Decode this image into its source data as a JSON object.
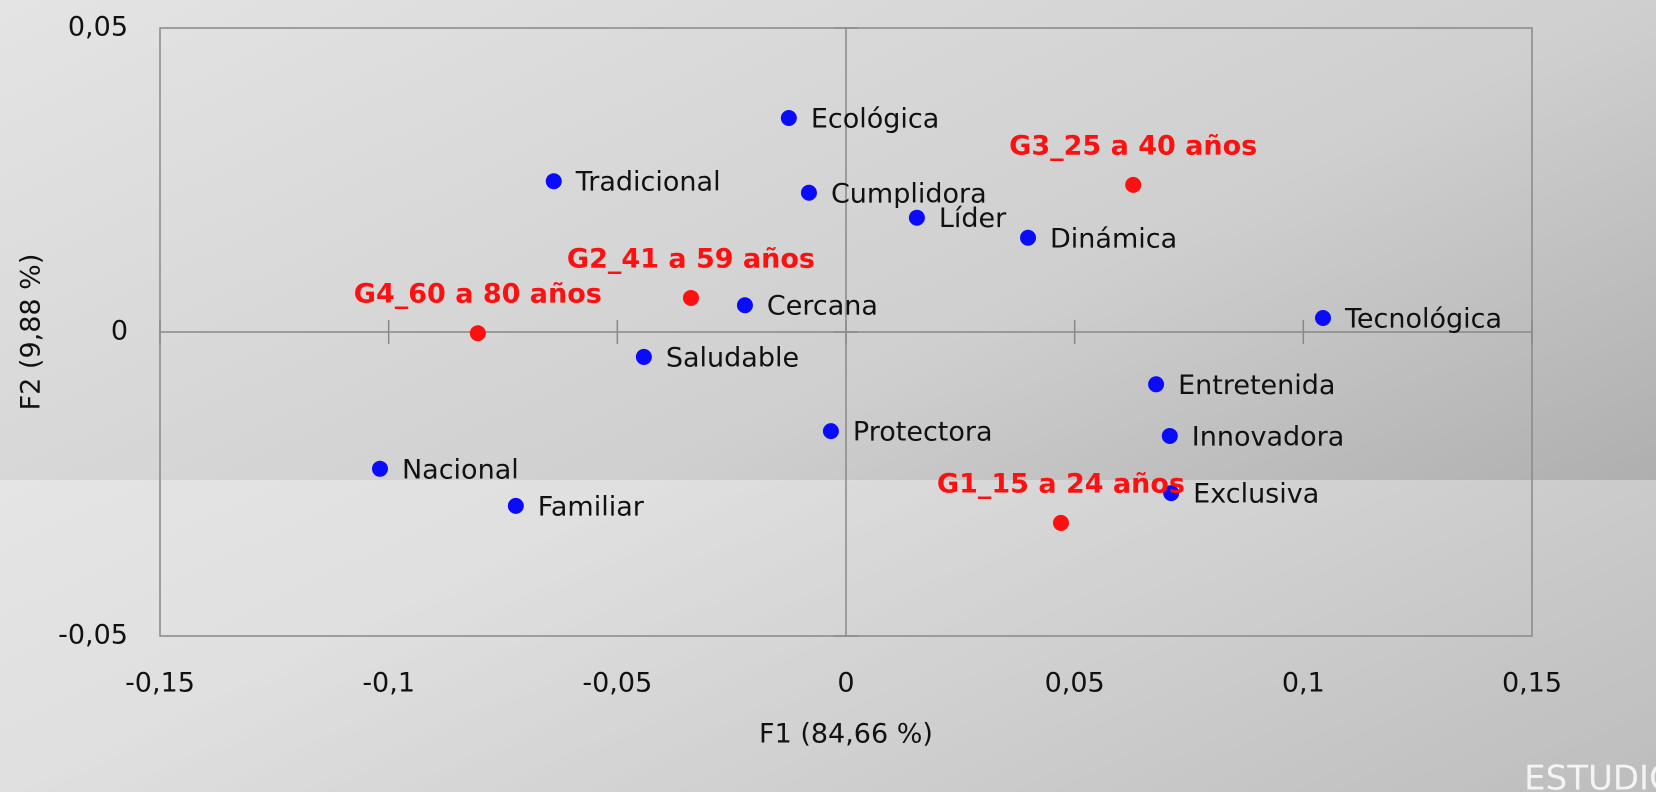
{
  "chart_data": {
    "type": "scatter",
    "x_label": "F1 (84,66 %)",
    "y_label": "F2 (9,88 %)",
    "xlim": [
      -0.15,
      0.15
    ],
    "xticks": [
      {
        "value": -0.15,
        "label": "-0,15"
      },
      {
        "value": -0.1,
        "label": "-0,1"
      },
      {
        "value": -0.05,
        "label": "-0,05"
      },
      0,
      {
        "value": 0.05,
        "label": "0,05"
      },
      {
        "value": 0.1,
        "label": "0,1"
      },
      {
        "value": 0.15,
        "label": "0,15"
      }
    ],
    "ylim": [
      -0.05,
      0.05
    ],
    "yticks": [
      {
        "value": -0.05,
        "label": "-0,05"
      },
      0,
      {
        "value": 0.05,
        "label": "0,05"
      }
    ],
    "series": [
      {
        "color": "#0a0aff",
        "label_style": "right",
        "labels": [
          "Ecológica",
          "Tradicional",
          "Cumplidora",
          "Líder",
          "Dinámica",
          "Cercana",
          "Tecnológica",
          "Saludable",
          "Entretenida",
          "Protectora",
          "Innovadora",
          "Nacional",
          "Familiar",
          "Exclusiva"
        ],
        "x": [
          -0.0125,
          -0.0639,
          -0.0081,
          0.0155,
          0.0398,
          -0.0221,
          0.1043,
          -0.0442,
          0.0678,
          -0.0033,
          0.0708,
          -0.1019,
          -0.0722,
          0.0711
        ],
        "y": [
          0.0352,
          0.0248,
          0.0229,
          0.0188,
          0.0155,
          0.0044,
          0.0023,
          -0.0041,
          -0.0086,
          -0.0163,
          -0.0171,
          -0.0225,
          -0.0286,
          -0.0265
        ]
      },
      {
        "color": "#ff1010",
        "label_style": "above",
        "labels": [
          "G3_25 a 40 años",
          "G2_41 a 59 años",
          "G4_60 a 80 años",
          "G1_15 a 24 años"
        ],
        "x": [
          0.0628,
          -0.0339,
          -0.0805,
          0.047
        ],
        "y": [
          0.0242,
          0.0056,
          -0.0002,
          -0.0314
        ]
      }
    ]
  },
  "watermark": "ESTUDIO"
}
